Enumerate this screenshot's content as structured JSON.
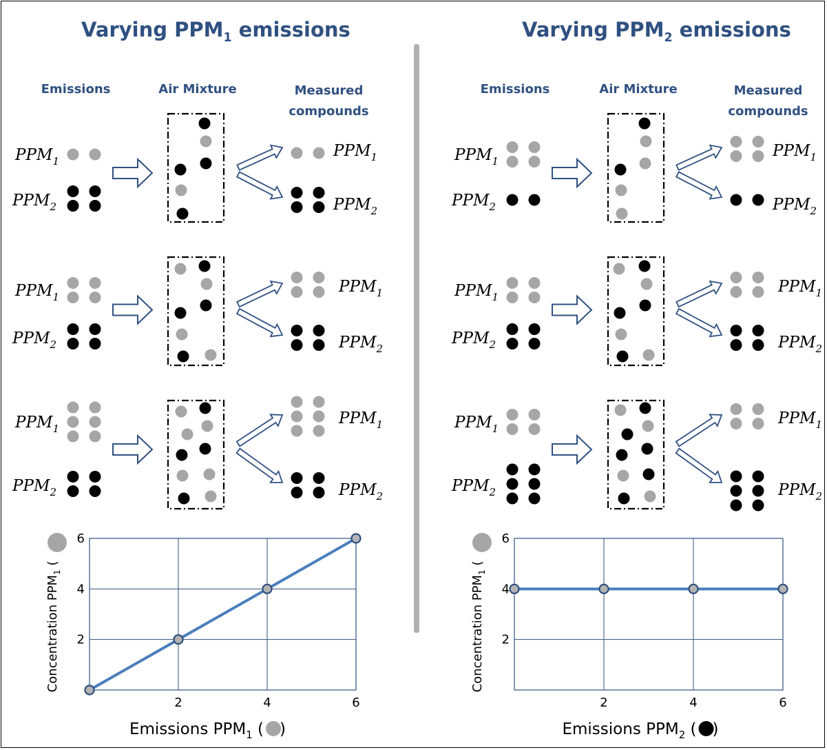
{
  "panels": [
    {
      "id": "left",
      "title": {
        "main": "Varying PPM",
        "sub": "1",
        "tail": " emissions"
      },
      "headers": {
        "emissions": "Emissions",
        "mixture": "Air Mixture",
        "measured_1": "Measured",
        "measured_2": "compounds"
      },
      "scenarios": [
        {
          "emissions": {
            "ppm1": 2,
            "ppm2": 4
          },
          "measured": {
            "ppm1": 2,
            "ppm2": 4
          }
        },
        {
          "emissions": {
            "ppm1": 4,
            "ppm2": 4
          },
          "measured": {
            "ppm1": 4,
            "ppm2": 4
          }
        },
        {
          "emissions": {
            "ppm1": 6,
            "ppm2": 4
          },
          "measured": {
            "ppm1": 6,
            "ppm2": 4
          }
        }
      ],
      "xlabel": {
        "main": "Emissions PPM",
        "sub": "1",
        "tail": " (",
        "close": ")",
        "marker": "gray"
      },
      "ylabel": {
        "main": "Concentration PPM",
        "sub": "1",
        "marker": "gray"
      }
    },
    {
      "id": "right",
      "title": {
        "main": "Varying PPM",
        "sub": "2",
        "tail": " emissions"
      },
      "headers": {
        "emissions": "Emissions",
        "mixture": "Air Mixture",
        "measured_1": "Measured",
        "measured_2": "compounds"
      },
      "scenarios": [
        {
          "emissions": {
            "ppm1": 4,
            "ppm2": 2
          },
          "measured": {
            "ppm1": 4,
            "ppm2": 2
          }
        },
        {
          "emissions": {
            "ppm1": 4,
            "ppm2": 4
          },
          "measured": {
            "ppm1": 4,
            "ppm2": 4
          }
        },
        {
          "emissions": {
            "ppm1": 4,
            "ppm2": 6
          },
          "measured": {
            "ppm1": 4,
            "ppm2": 6
          }
        }
      ],
      "xlabel": {
        "main": "Emissions PPM",
        "sub": "2",
        "tail": " (",
        "close": ")",
        "marker": "black"
      },
      "ylabel": {
        "main": "Concentration PPM",
        "sub": "1",
        "marker": "gray"
      }
    }
  ],
  "labels": {
    "ppm": "PPM",
    "ppm1_sub": "1",
    "ppm2_sub": "2"
  },
  "colors": {
    "title": "#2f5080",
    "ppm1_dot": "#a6a6a6",
    "ppm2_dot": "#000000",
    "line": "#4a7ebb",
    "grid": "#2f4f7f",
    "arrow": "#2f5080",
    "divider": "#b0b0b0"
  },
  "chart_data": [
    {
      "type": "line",
      "panel": "left",
      "x": [
        0,
        2,
        4,
        6
      ],
      "series": [
        {
          "values": [
            0,
            2,
            4,
            6
          ]
        }
      ],
      "xticks": [
        2,
        4,
        6
      ],
      "yticks": [
        2,
        4,
        6
      ],
      "xlim": [
        0,
        6
      ],
      "ylim": [
        0,
        6
      ],
      "grid": true
    },
    {
      "type": "line",
      "panel": "right",
      "x": [
        0,
        2,
        4,
        6
      ],
      "series": [
        {
          "values": [
            4,
            4,
            4,
            4
          ]
        }
      ],
      "xticks": [
        2,
        4,
        6
      ],
      "yticks": [
        2,
        4,
        6
      ],
      "xlim": [
        0,
        6
      ],
      "ylim": [
        0,
        6
      ],
      "grid": true
    }
  ]
}
